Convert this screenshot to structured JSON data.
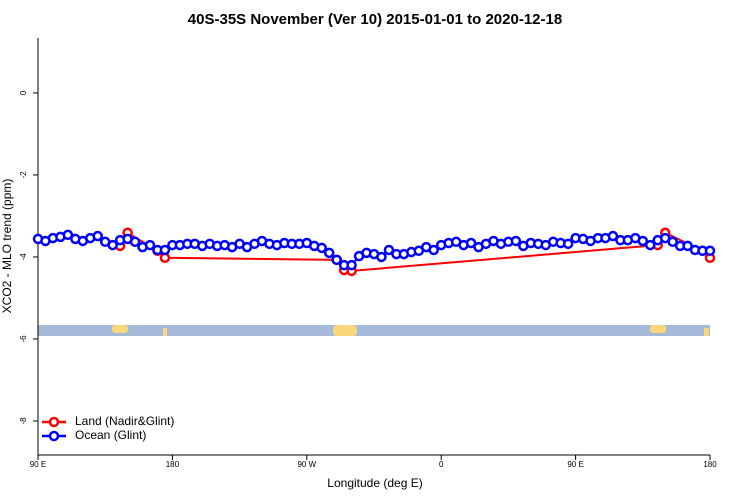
{
  "chart_data": {
    "type": "line",
    "title": "40S-35S November (Ver 10)   2015-01-01 to 2020-12-18",
    "x_label": "Longitude (deg E)",
    "y_label": "XCO2 - MLO trend (ppm)",
    "xlim": [
      90,
      540
    ],
    "ylim": [
      -8.83,
      1.34
    ],
    "xticks": [
      {
        "value": 90,
        "label": "90 E"
      },
      180,
      {
        "value": 270,
        "label": "90 W"
      },
      {
        "value": 360,
        "label": "0"
      },
      {
        "value": 450,
        "label": "90 E"
      },
      {
        "value": 540,
        "label": "180"
      }
    ],
    "yticks": [
      0,
      -2,
      -4,
      -6,
      -8
    ],
    "legend": "bottom-left",
    "series": [
      {
        "name": "Land (Nadir&Glint)",
        "color": "#ff0000",
        "x": [
          145,
          150,
          170,
          175,
          290,
          295,
          300,
          505,
          510,
          535,
          540
        ],
        "values": [
          -3.73,
          -3.41,
          -3.85,
          -4.02,
          -4.07,
          -4.32,
          -4.34,
          -3.71,
          -3.41,
          -3.85,
          -4.02
        ]
      },
      {
        "name": "Ocean (Glint)",
        "color": "#0000ff",
        "x": [
          90,
          95,
          100,
          105,
          110,
          115,
          120,
          125,
          130,
          135,
          140,
          145,
          150,
          155,
          160,
          165,
          170,
          175,
          180,
          185,
          190,
          195,
          200,
          205,
          210,
          215,
          220,
          225,
          230,
          235,
          240,
          245,
          250,
          255,
          260,
          265,
          270,
          275,
          280,
          285,
          290,
          295,
          300,
          305,
          310,
          315,
          320,
          325,
          330,
          335,
          340,
          345,
          350,
          355,
          360,
          365,
          370,
          375,
          380,
          385,
          390,
          395,
          400,
          405,
          410,
          415,
          420,
          425,
          430,
          435,
          440,
          445,
          450,
          455,
          460,
          465,
          470,
          475,
          480,
          485,
          490,
          495,
          500,
          505,
          510,
          515,
          520,
          525,
          530,
          535,
          540
        ],
        "values": [
          -3.56,
          -3.61,
          -3.54,
          -3.51,
          -3.46,
          -3.56,
          -3.61,
          -3.54,
          -3.49,
          -3.63,
          -3.71,
          -3.59,
          -3.56,
          -3.63,
          -3.76,
          -3.71,
          -3.83,
          -3.83,
          -3.71,
          -3.71,
          -3.68,
          -3.68,
          -3.73,
          -3.68,
          -3.73,
          -3.71,
          -3.76,
          -3.68,
          -3.76,
          -3.68,
          -3.61,
          -3.68,
          -3.71,
          -3.66,
          -3.68,
          -3.68,
          -3.66,
          -3.73,
          -3.78,
          -3.9,
          -4.07,
          -4.2,
          -4.2,
          -3.98,
          -3.9,
          -3.93,
          -4.0,
          -3.83,
          -3.93,
          -3.93,
          -3.88,
          -3.85,
          -3.76,
          -3.83,
          -3.71,
          -3.66,
          -3.63,
          -3.71,
          -3.66,
          -3.76,
          -3.68,
          -3.61,
          -3.68,
          -3.63,
          -3.61,
          -3.73,
          -3.66,
          -3.68,
          -3.71,
          -3.63,
          -3.66,
          -3.68,
          -3.54,
          -3.56,
          -3.61,
          -3.54,
          -3.54,
          -3.49,
          -3.59,
          -3.59,
          -3.54,
          -3.61,
          -3.71,
          -3.59,
          -3.54,
          -3.63,
          -3.73,
          -3.73,
          -3.83,
          -3.85,
          -3.85
        ]
      }
    ]
  }
}
